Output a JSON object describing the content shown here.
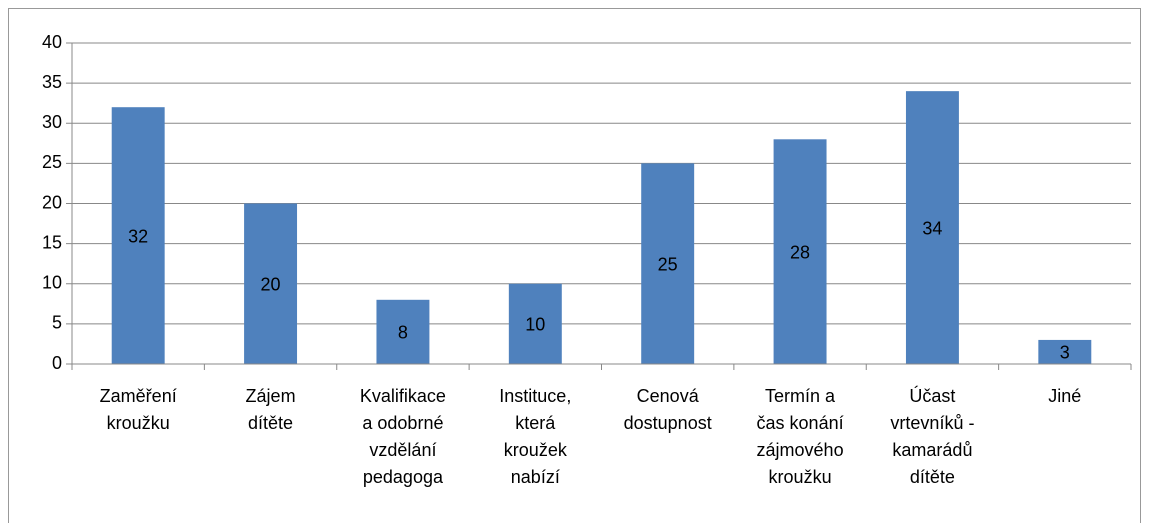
{
  "chart_data": {
    "type": "bar",
    "categories": [
      "Zaměření kroužku",
      "Zájem dítěte",
      "Kvalifikace a odobrné vzdělání pedagoga",
      "Instituce, která kroužek nabízí",
      "Cenová dostupnost",
      "Termín a čas konání zájmového kroužku",
      "Účast vrtevníků - kamarádů dítěte",
      "Jiné"
    ],
    "values": [
      32,
      20,
      8,
      10,
      25,
      28,
      34,
      3
    ],
    "color": "#4f81bd",
    "ylim": [
      0,
      40
    ],
    "yticks": [
      0,
      5,
      10,
      15,
      20,
      25,
      30,
      35,
      40
    ],
    "grid": true
  }
}
